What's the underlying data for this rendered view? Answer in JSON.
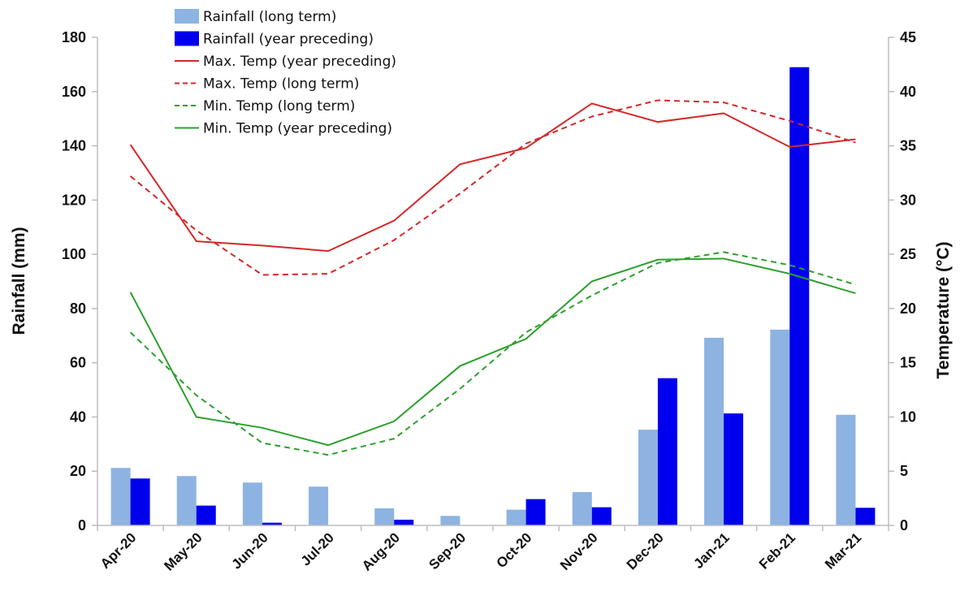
{
  "chart_data": {
    "type": "bar+line",
    "categories": [
      "Apr-20",
      "May-20",
      "Jun-20",
      "Jul-20",
      "Aug-20",
      "Sep-20",
      "Oct-20",
      "Nov-20",
      "Dec-20",
      "Jan-21",
      "Feb-21",
      "Mar-21"
    ],
    "ylabel": "Rainfall (mm)",
    "y2label": "Temperature (°C)",
    "ylim": [
      0,
      180
    ],
    "y2lim": [
      0,
      45
    ],
    "yticks": [
      0,
      20,
      40,
      60,
      80,
      100,
      120,
      140,
      160,
      180
    ],
    "y2ticks": [
      0,
      5,
      10,
      15,
      20,
      25,
      30,
      35,
      40,
      45
    ],
    "legend_position": "top-left",
    "grid": false,
    "series": [
      {
        "name": "Rainfall (long term)",
        "kind": "bar",
        "axis": "left",
        "color": "#8db3e2",
        "values": [
          21.2,
          18.2,
          15.8,
          14.3,
          6.3,
          3.5,
          5.8,
          12.3,
          35.3,
          69.2,
          72.2,
          40.8
        ]
      },
      {
        "name": "Rainfall (year preceding)",
        "kind": "bar",
        "axis": "left",
        "color": "#0000ee",
        "values": [
          17.3,
          7.3,
          1.0,
          0,
          2.1,
          0,
          9.7,
          6.7,
          54.3,
          41.3,
          169.0,
          6.5
        ]
      },
      {
        "name": "Max. Temp (year preceding)",
        "kind": "line",
        "dash": "solid",
        "axis": "right",
        "color": "#d62728",
        "values": [
          35.1,
          26.2,
          25.8,
          25.3,
          28.1,
          33.3,
          34.8,
          38.9,
          37.2,
          38.0,
          34.9,
          35.6
        ]
      },
      {
        "name": "Max. Temp (long term)",
        "kind": "line",
        "dash": "dashed",
        "axis": "right",
        "color": "#d62728",
        "values": [
          32.2,
          27.2,
          23.1,
          23.2,
          26.3,
          30.6,
          35.2,
          37.7,
          39.2,
          39.0,
          37.3,
          35.3
        ]
      },
      {
        "name": "Min. Temp (long term)",
        "kind": "line",
        "dash": "dashed",
        "axis": "right",
        "color": "#2ca02c",
        "values": [
          17.8,
          12.0,
          7.6,
          6.5,
          8.0,
          12.6,
          17.8,
          21.2,
          24.2,
          25.2,
          24.0,
          22.2
        ]
      },
      {
        "name": "Min. Temp (year preceding)",
        "kind": "line",
        "dash": "solid",
        "axis": "right",
        "color": "#2ca02c",
        "values": [
          21.5,
          10.0,
          9.0,
          7.4,
          9.6,
          14.7,
          17.2,
          22.5,
          24.5,
          24.6,
          23.2,
          21.4
        ]
      }
    ]
  }
}
